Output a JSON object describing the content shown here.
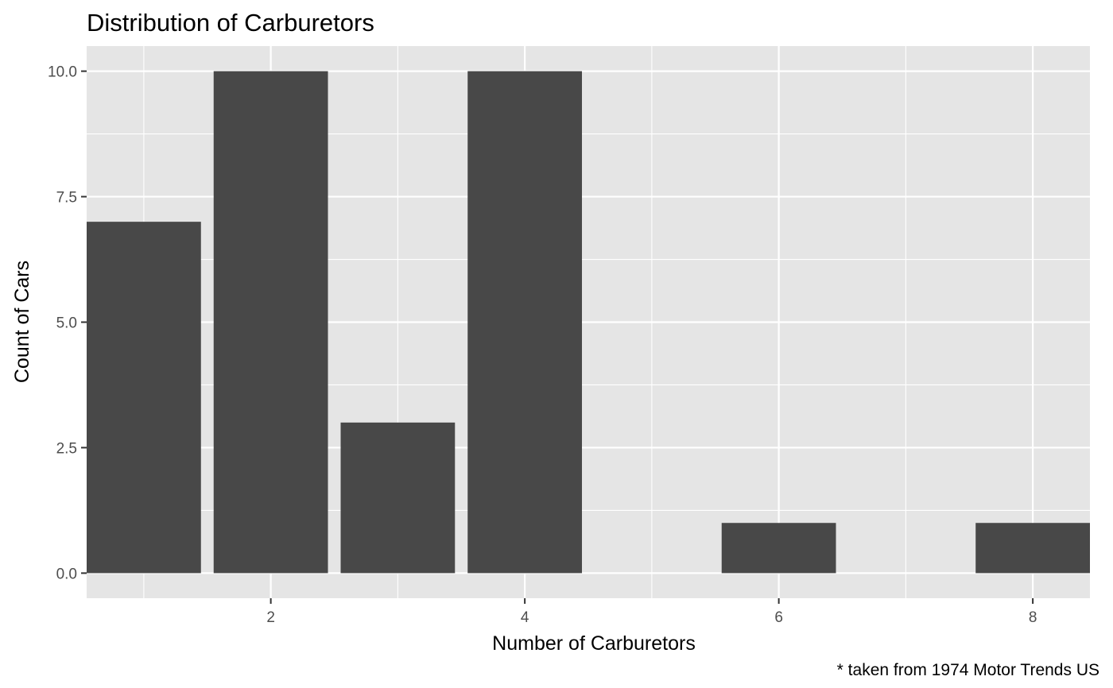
{
  "chart_data": {
    "type": "bar",
    "title": "Distribution of Carburetors",
    "xlabel": "Number of Carburetors",
    "ylabel": "Count of Cars",
    "caption": "* taken from 1974 Motor Trends US",
    "x": [
      1,
      2,
      3,
      4,
      6,
      8
    ],
    "values": [
      7,
      10,
      3,
      10,
      1,
      1
    ],
    "xlim": [
      0.55,
      8.45
    ],
    "ylim": [
      -0.5,
      10.5
    ],
    "xticks": [
      2,
      4,
      6,
      8
    ],
    "xtick_labels": [
      "2",
      "4",
      "6",
      "8"
    ],
    "yticks": [
      0,
      2.5,
      5,
      7.5,
      10
    ],
    "ytick_labels": [
      "0.0",
      "2.5",
      "5.0",
      "7.5",
      "10.0"
    ],
    "grid": true,
    "bar_width": 0.9
  },
  "colors": {
    "panel_background": "#e5e5e5",
    "bar_fill": "#484848",
    "grid": "#ffffff",
    "tick_text": "#4d4d4d"
  }
}
